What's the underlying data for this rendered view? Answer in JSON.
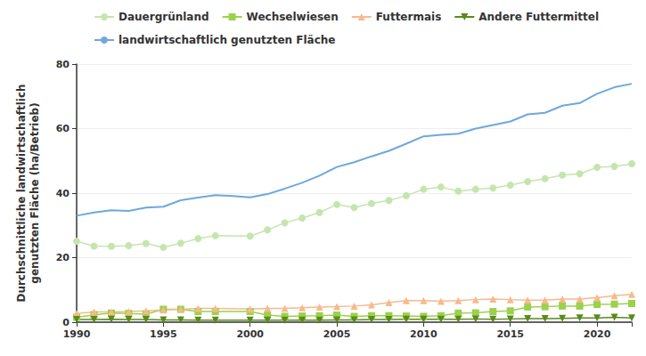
{
  "chart_data": {
    "type": "line",
    "ylabel": "Durchschnittliche landwirtschaftlich genutzten Fläche (ha/Betrieb)",
    "xlim": [
      1990,
      2022
    ],
    "xticks": [
      1990,
      1995,
      2000,
      2005,
      2010,
      2015,
      2020
    ],
    "ylim": [
      0,
      80
    ],
    "yticks": [
      0,
      20,
      40,
      60,
      80
    ],
    "grid": true,
    "legend": "top",
    "series": [
      {
        "name": "Dauergrünland",
        "color": "#c5e5ae",
        "marker": "circle",
        "x": [
          1990,
          1991,
          1992,
          1993,
          1994,
          1995,
          1996,
          1997,
          1998,
          2000,
          2001,
          2002,
          2003,
          2004,
          2005,
          2006,
          2007,
          2008,
          2009,
          2010,
          2011,
          2012,
          2013,
          2014,
          2015,
          2016,
          2017,
          2018,
          2019,
          2020,
          2021,
          2022
        ],
        "values": [
          25.1,
          23.6,
          23.5,
          23.7,
          24.4,
          23.2,
          24.5,
          25.9,
          26.8,
          26.7,
          28.6,
          30.8,
          32.3,
          34.0,
          36.5,
          35.5,
          36.8,
          37.7,
          39.2,
          41.2,
          41.9,
          40.6,
          41.2,
          41.6,
          42.5,
          43.6,
          44.5,
          45.6,
          46.0,
          48.0,
          48.3,
          49.1
        ]
      },
      {
        "name": "Wechselwiesen",
        "color": "#9bd14b",
        "marker": "square",
        "x": [
          1990,
          1991,
          1992,
          1993,
          1994,
          1995,
          1996,
          1997,
          1998,
          2000,
          2001,
          2002,
          2003,
          2004,
          2005,
          2006,
          2007,
          2008,
          2009,
          2010,
          2011,
          2012,
          2013,
          2014,
          2015,
          2016,
          2017,
          2018,
          2019,
          2020,
          2021,
          2022
        ],
        "values": [
          1.5,
          2.3,
          2.8,
          2.7,
          2.5,
          4.0,
          4.0,
          3.3,
          3.3,
          3.3,
          2.2,
          1.8,
          1.9,
          2.0,
          2.2,
          1.8,
          2.0,
          2.0,
          1.9,
          1.8,
          2.0,
          2.8,
          2.9,
          3.3,
          3.5,
          4.7,
          4.8,
          5.0,
          5.0,
          5.5,
          5.6,
          5.8
        ]
      },
      {
        "name": "Futtermais",
        "color": "#f8b98c",
        "marker": "triangle",
        "x": [
          1990,
          1991,
          1992,
          1993,
          1994,
          1995,
          1996,
          1997,
          1998,
          2000,
          2001,
          2002,
          2003,
          2004,
          2005,
          2006,
          2007,
          2008,
          2009,
          2010,
          2011,
          2012,
          2013,
          2014,
          2015,
          2016,
          2017,
          2018,
          2019,
          2020,
          2021,
          2022
        ],
        "values": [
          2.7,
          3.2,
          3.2,
          3.3,
          3.5,
          3.8,
          4.0,
          4.3,
          4.3,
          4.1,
          4.3,
          4.3,
          4.5,
          4.7,
          4.8,
          5.0,
          5.4,
          6.1,
          6.7,
          6.7,
          6.5,
          6.7,
          7.0,
          7.2,
          7.0,
          6.8,
          6.8,
          7.2,
          7.2,
          7.6,
          8.2,
          8.6
        ]
      },
      {
        "name": "Andere Futtermittel",
        "color": "#5a8a1c",
        "marker": "triangle-down",
        "x": [
          1990,
          1991,
          1992,
          1993,
          1994,
          1995,
          1996,
          1997,
          1998,
          2000,
          2001,
          2002,
          2003,
          2004,
          2005,
          2006,
          2007,
          2008,
          2009,
          2010,
          2011,
          2012,
          2013,
          2014,
          2015,
          2016,
          2017,
          2018,
          2019,
          2020,
          2021,
          2022
        ],
        "values": [
          0.8,
          0.8,
          0.9,
          0.8,
          0.8,
          0.7,
          0.7,
          0.6,
          0.6,
          0.6,
          0.6,
          0.6,
          0.6,
          0.6,
          0.7,
          0.7,
          0.8,
          0.8,
          0.9,
          0.9,
          0.9,
          0.9,
          1.0,
          0.9,
          1.0,
          1.1,
          1.1,
          1.2,
          1.3,
          1.3,
          1.5,
          1.3
        ]
      },
      {
        "name": "landwirtschaftlich genutzten Fläche",
        "color": "#6fa8dc",
        "marker": "none",
        "x": [
          1990,
          1991,
          1992,
          1993,
          1994,
          1995,
          1996,
          1997,
          1998,
          1999,
          2000,
          2001,
          2002,
          2003,
          2004,
          2005,
          2006,
          2007,
          2008,
          2009,
          2010,
          2011,
          2012,
          2013,
          2014,
          2015,
          2016,
          2017,
          2018,
          2019,
          2020,
          2021,
          2022
        ],
        "values": [
          33.0,
          34.0,
          34.7,
          34.5,
          35.5,
          35.8,
          37.8,
          38.6,
          39.4,
          39.1,
          38.7,
          39.7,
          41.4,
          43.2,
          45.4,
          48.1,
          49.6,
          51.4,
          53.1,
          55.3,
          57.6,
          58.1,
          58.4,
          60.0,
          61.1,
          62.2,
          64.4,
          64.9,
          67.1,
          67.9,
          70.8,
          72.8,
          73.9
        ]
      }
    ]
  }
}
